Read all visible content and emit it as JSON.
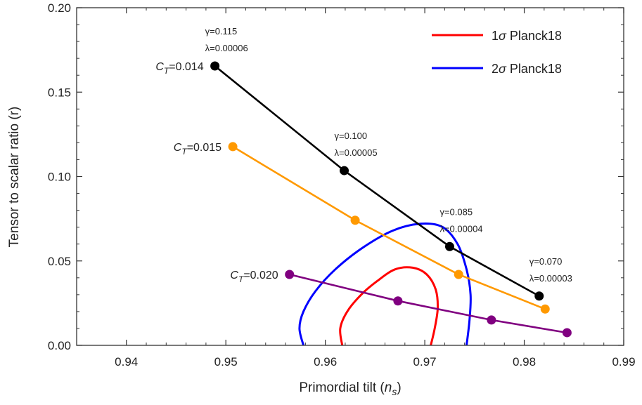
{
  "chart_data": {
    "type": "scatter",
    "xlabel": "Primordial tilt",
    "xlabel_var": "n",
    "xlabel_sub": "s",
    "ylabel": "Tensor to scalar ratio (r)",
    "xlim": [
      0.935,
      0.99
    ],
    "ylim": [
      0.0,
      0.2
    ],
    "xticks": [
      "0.94",
      "0.95",
      "0.96",
      "0.97",
      "0.98",
      "0.99"
    ],
    "yticks": [
      "0.00",
      "0.05",
      "0.10",
      "0.15",
      "0.20"
    ],
    "legend_position": "top-right",
    "legend": [
      {
        "symbol": "1σ",
        "label": "Planck18",
        "color": "#ff0000"
      },
      {
        "symbol": "2σ",
        "label": "Planck18",
        "color": "#0000ff"
      }
    ],
    "series": [
      {
        "label_prefix": "C",
        "label_sub": "T",
        "label_value": "=0.014",
        "color": "#000000",
        "points": [
          [
            0.9489,
            0.1655
          ],
          [
            0.9619,
            0.1035
          ],
          [
            0.9725,
            0.0585
          ],
          [
            0.9815,
            0.0292
          ]
        ]
      },
      {
        "label_prefix": "C",
        "label_sub": "T",
        "label_value": "=0.015",
        "color": "#ff9900",
        "points": [
          [
            0.9507,
            0.1177
          ],
          [
            0.963,
            0.0741
          ],
          [
            0.9734,
            0.042
          ],
          [
            0.9821,
            0.0215
          ]
        ]
      },
      {
        "label_prefix": "C",
        "label_sub": "T",
        "label_value": "=0.020",
        "color": "#800080",
        "points": [
          [
            0.9564,
            0.042
          ],
          [
            0.9673,
            0.0263
          ],
          [
            0.9767,
            0.015
          ],
          [
            0.9843,
            0.0075
          ]
        ]
      }
    ],
    "contours": {
      "sigma1": {
        "color": "#ff0000",
        "points": [
          [
            0.9617,
            0.0
          ],
          [
            0.9615,
            0.01
          ],
          [
            0.9622,
            0.02
          ],
          [
            0.9636,
            0.03
          ],
          [
            0.9652,
            0.038
          ],
          [
            0.967,
            0.045
          ],
          [
            0.9688,
            0.046
          ],
          [
            0.9702,
            0.042
          ],
          [
            0.9711,
            0.033
          ],
          [
            0.9713,
            0.022
          ],
          [
            0.971,
            0.01
          ],
          [
            0.9706,
            0.0
          ]
        ]
      },
      "sigma2": {
        "color": "#0000ff",
        "points": [
          [
            0.9578,
            0.0
          ],
          [
            0.9574,
            0.01
          ],
          [
            0.9578,
            0.02
          ],
          [
            0.959,
            0.032
          ],
          [
            0.961,
            0.045
          ],
          [
            0.9638,
            0.058
          ],
          [
            0.9668,
            0.068
          ],
          [
            0.9696,
            0.072
          ],
          [
            0.9718,
            0.07
          ],
          [
            0.9733,
            0.06
          ],
          [
            0.9742,
            0.045
          ],
          [
            0.9746,
            0.03
          ],
          [
            0.9745,
            0.015
          ],
          [
            0.9742,
            0.0
          ]
        ]
      }
    },
    "annotations": [
      {
        "gamma": "γ=0.115",
        "lambda": "λ=0.00006",
        "anchor": [
          0.9489,
          0.1655
        ]
      },
      {
        "gamma": "γ=0.100",
        "lambda": "λ=0.00005",
        "anchor": [
          0.9619,
          0.1035
        ]
      },
      {
        "gamma": "γ=0.085",
        "lambda": "λ=0.00004",
        "anchor": [
          0.9725,
          0.0585
        ]
      },
      {
        "gamma": "γ=0.070",
        "lambda": "λ=0.00003",
        "anchor": [
          0.9815,
          0.0292
        ]
      }
    ]
  }
}
